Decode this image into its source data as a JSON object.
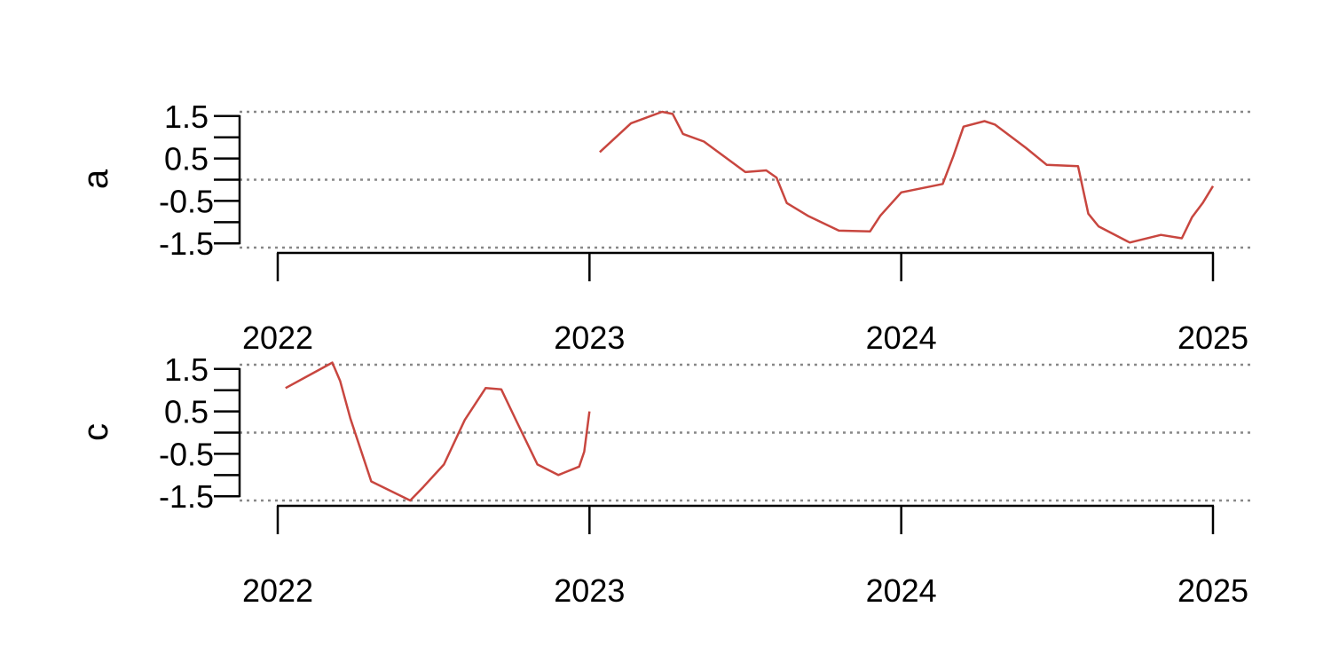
{
  "chart_data": {
    "type": "line",
    "line_color": "#c8463f",
    "reference_line_color": "#888888",
    "x_range": [
      2022,
      2025
    ],
    "x_ticks": [
      2022,
      2023,
      2024,
      2025
    ],
    "x_tick_labels": [
      "2022",
      "2023",
      "2024",
      "2025"
    ],
    "panels": [
      {
        "label": "a",
        "ylim": [
          -1.6,
          1.6
        ],
        "y_tick_labels": [
          "1.5",
          "0.5",
          "-0.5",
          "-1.5"
        ],
        "y_tick_values": [
          1.5,
          0.5,
          -0.5,
          -1.5
        ],
        "y_minor_ticks": [
          1.5,
          1.0,
          0.5,
          0.0,
          -0.5,
          -1.0,
          -1.5
        ],
        "reference_lines": [
          1.6,
          0.0,
          -1.6
        ],
        "series": [
          {
            "name": "a",
            "x": [
              2023.033,
              2023.133,
              2023.233,
              2023.267,
              2023.3,
              2023.367,
              2023.5,
              2023.567,
              2023.6,
              2023.633,
              2023.7,
              2023.8,
              2023.9,
              2023.933,
              2024.0,
              2024.133,
              2024.167,
              2024.2,
              2024.267,
              2024.3,
              2024.4,
              2024.467,
              2024.567,
              2024.6,
              2024.633,
              2024.733,
              2024.833,
              2024.9,
              2024.933,
              2024.967,
              2025.0
            ],
            "values": [
              0.65,
              1.33,
              1.6,
              1.55,
              1.08,
              0.9,
              0.18,
              0.22,
              0.05,
              -0.55,
              -0.85,
              -1.2,
              -1.22,
              -0.85,
              -0.3,
              -0.1,
              0.55,
              1.25,
              1.38,
              1.3,
              0.75,
              0.35,
              0.32,
              -0.8,
              -1.1,
              -1.48,
              -1.3,
              -1.38,
              -0.88,
              -0.55,
              -0.15
            ]
          }
        ]
      },
      {
        "label": "c",
        "ylim": [
          -1.6,
          1.6
        ],
        "y_tick_labels": [
          "1.5",
          "0.5",
          "-0.5",
          "-1.5"
        ],
        "y_tick_values": [
          1.5,
          0.5,
          -0.5,
          -1.5
        ],
        "y_minor_ticks": [
          1.5,
          1.0,
          0.5,
          0.0,
          -0.5,
          -1.0,
          -1.5
        ],
        "reference_lines": [
          1.6,
          0.0,
          -1.6
        ],
        "series": [
          {
            "name": "c",
            "x": [
              2022.025,
              2022.1,
              2022.175,
              2022.2,
              2022.233,
              2022.3,
              2022.425,
              2022.467,
              2022.533,
              2022.6,
              2022.667,
              2022.717,
              2022.767,
              2022.833,
              2022.9,
              2022.967,
              2022.983,
              2023.0
            ],
            "values": [
              1.05,
              1.35,
              1.65,
              1.22,
              0.33,
              -1.15,
              -1.6,
              -1.28,
              -0.75,
              0.3,
              1.05,
              1.02,
              0.25,
              -0.75,
              -1.0,
              -0.8,
              -0.45,
              0.5
            ]
          }
        ]
      }
    ]
  }
}
